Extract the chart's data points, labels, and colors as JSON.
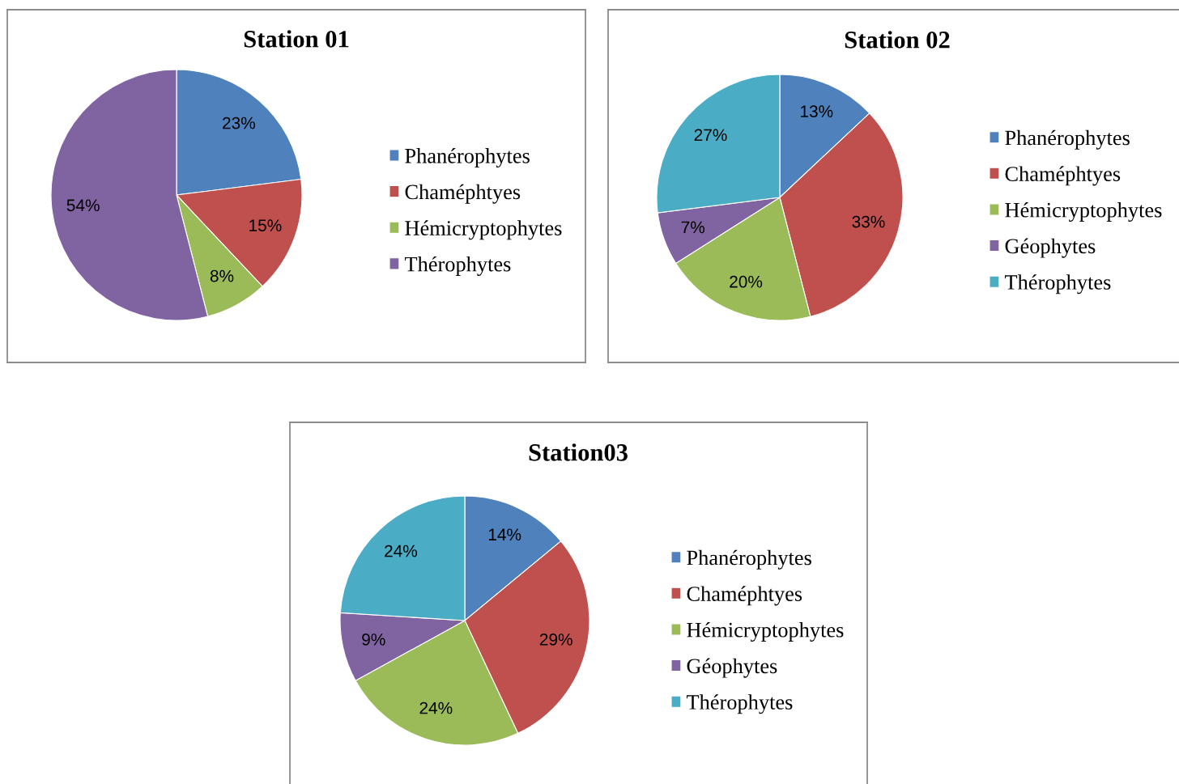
{
  "chart_data": [
    {
      "type": "pie",
      "title": "Station 01",
      "categories": [
        "Phanérophytes",
        "Chaméphtyes",
        "Hémicryptophytes",
        "Thérophytes"
      ],
      "values": [
        23,
        15,
        8,
        54
      ],
      "colors": [
        "#4f81bd",
        "#c0504d",
        "#9bbb59",
        "#8064a2"
      ],
      "value_labels": [
        "23%",
        "15%",
        "8%",
        "54%"
      ],
      "legend": "right"
    },
    {
      "type": "pie",
      "title": "Station 02",
      "categories": [
        "Phanérophytes",
        "Chaméphtyes",
        "Hémicryptophytes",
        "Géophytes",
        "Thérophytes"
      ],
      "values": [
        13,
        33,
        20,
        7,
        27
      ],
      "colors": [
        "#4f81bd",
        "#c0504d",
        "#9bbb59",
        "#8064a2",
        "#4bacc6"
      ],
      "value_labels": [
        "13%",
        "33%",
        "20%",
        "7%",
        "27%"
      ],
      "legend": "right"
    },
    {
      "type": "pie",
      "title": "Station03",
      "categories": [
        "Phanérophytes",
        "Chaméphtyes",
        "Hémicryptophytes",
        "Géophytes",
        "Thérophytes"
      ],
      "values": [
        14,
        29,
        24,
        9,
        24
      ],
      "colors": [
        "#4f81bd",
        "#c0504d",
        "#9bbb59",
        "#8064a2",
        "#4bacc6"
      ],
      "value_labels": [
        "14%",
        "29%",
        "24%",
        "9%",
        "24%"
      ],
      "legend": "right"
    }
  ]
}
